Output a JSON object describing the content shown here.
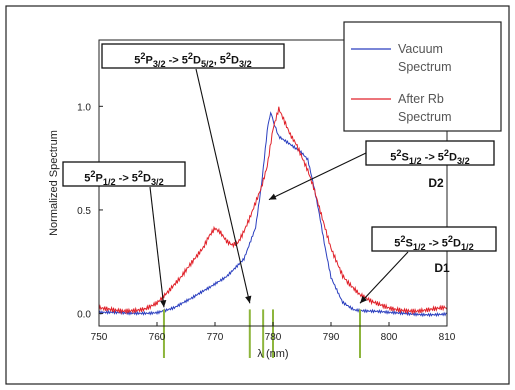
{
  "chart_data": {
    "type": "line",
    "xlabel": "λ  (nm)",
    "ylabel": "Normalized Spectrum",
    "xlim": [
      750,
      810
    ],
    "ylim": [
      -0.06,
      1.32
    ],
    "x_ticks": [
      750,
      760,
      770,
      780,
      790,
      800,
      810
    ],
    "y_ticks": [
      0.0,
      0.5,
      1.0
    ],
    "grid": false,
    "legend_position": "top-right",
    "series": [
      {
        "name": "Vacuum Spectrum",
        "color": "#2b3fbf",
        "x": [
          750,
          755,
          760,
          763,
          766,
          769,
          772,
          775,
          777,
          778,
          779,
          779.6,
          780.2,
          781,
          782,
          783,
          784,
          785,
          786,
          787,
          788,
          789,
          790,
          792,
          794,
          796,
          800,
          805,
          810
        ],
        "y": [
          0.0,
          0.0,
          0.01,
          0.03,
          0.07,
          0.12,
          0.18,
          0.27,
          0.42,
          0.62,
          0.88,
          0.97,
          0.92,
          0.85,
          0.83,
          0.81,
          0.79,
          0.77,
          0.74,
          0.62,
          0.48,
          0.32,
          0.18,
          0.06,
          0.02,
          0.01,
          0.0,
          0.0,
          0.0
        ]
      },
      {
        "name": "After Rb Spectrum",
        "color": "#e0222a",
        "x": [
          750,
          754,
          758,
          760,
          762,
          764,
          766,
          768,
          769,
          770,
          771,
          772,
          773,
          774,
          775,
          776,
          777,
          778,
          779,
          780,
          781,
          782,
          783,
          784,
          785,
          786,
          787,
          788,
          789,
          790,
          791,
          792,
          793,
          794,
          795,
          797,
          800,
          805,
          810
        ],
        "y": [
          0.02,
          0.02,
          0.03,
          0.05,
          0.1,
          0.16,
          0.24,
          0.32,
          0.38,
          0.42,
          0.4,
          0.36,
          0.34,
          0.35,
          0.4,
          0.46,
          0.53,
          0.6,
          0.7,
          0.88,
          0.98,
          0.92,
          0.86,
          0.82,
          0.76,
          0.7,
          0.62,
          0.52,
          0.42,
          0.32,
          0.25,
          0.18,
          0.14,
          0.11,
          0.08,
          0.05,
          0.03,
          0.02,
          0.02
        ]
      }
    ],
    "markers": [
      {
        "x": 761.2,
        "color": "#8db53c"
      },
      {
        "x": 776.0,
        "color": "#8db53c"
      },
      {
        "x": 778.3,
        "color": "#8db53c"
      },
      {
        "x": 780.0,
        "color": "#8db53c"
      },
      {
        "x": 795.0,
        "color": "#8db53c"
      }
    ],
    "annotations": [
      {
        "id": "ann1",
        "html": "5<sup>2</sup>P<sub>3/2</sub> -> 5<sup>2</sup>D<sub>5/2</sub>, 5<sup>2</sup>D<sub>3/2</sub>",
        "boxed": true,
        "arrow_to": [
          776.0,
          0.05
        ]
      },
      {
        "id": "ann2",
        "html": "5<sup>2</sup>P<sub>1/2</sub> -> 5<sup>2</sup>D<sub>3/2</sub>",
        "boxed": true,
        "arrow_to": [
          761.2,
          0.03
        ]
      },
      {
        "id": "ann3",
        "html": "5<sup>2</sup>S<sub>1/2</sub> -> 5<sup>2</sup>D<sub>3/2</sub>",
        "boxed": true,
        "arrow_to": [
          779.3,
          0.55
        ]
      },
      {
        "id": "ann4",
        "html": "5<sup>2</sup>S<sub>1/2</sub> -> 5<sup>2</sup>D<sub>1/2</sub>",
        "boxed": true,
        "arrow_to": [
          795.0,
          0.05
        ]
      }
    ],
    "labels": [
      {
        "id": "d2",
        "text": "D2"
      },
      {
        "id": "d1",
        "text": "D1"
      }
    ]
  }
}
